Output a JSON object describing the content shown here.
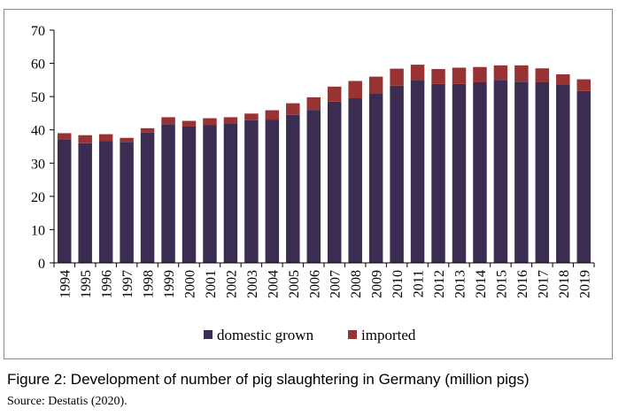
{
  "caption": "Figure 2: Development of number of pig slaughtering in Germany (million pigs)",
  "source": "Source: Destatis (2020).",
  "chart_data": {
    "type": "bar",
    "stacked": true,
    "categories": [
      "1994",
      "1995",
      "1996",
      "1997",
      "1998",
      "1999",
      "2000",
      "2001",
      "2002",
      "2003",
      "2004",
      "2005",
      "2006",
      "2007",
      "2008",
      "2009",
      "2010",
      "2011",
      "2012",
      "2013",
      "2014",
      "2015",
      "2016",
      "2017",
      "2018",
      "2019"
    ],
    "series": [
      {
        "name": "domestic grown",
        "color": "#3b2d52",
        "values": [
          37.1,
          36.0,
          36.7,
          36.4,
          39.2,
          41.7,
          41.0,
          41.5,
          42.0,
          42.9,
          43.1,
          44.5,
          46.0,
          48.5,
          49.5,
          51.0,
          53.3,
          55.0,
          53.8,
          53.8,
          54.3,
          55.0,
          54.5,
          54.3,
          53.5,
          51.7
        ]
      },
      {
        "name": "imported",
        "color": "#993333",
        "values": [
          1.9,
          2.4,
          2.0,
          1.2,
          1.3,
          2.1,
          1.7,
          2.0,
          1.8,
          2.0,
          2.8,
          3.5,
          3.8,
          4.5,
          5.2,
          5.0,
          5.1,
          4.6,
          4.5,
          4.9,
          4.6,
          4.4,
          4.9,
          4.2,
          3.2,
          3.5
        ]
      }
    ],
    "yticks": [
      0,
      10,
      20,
      30,
      40,
      50,
      60,
      70
    ],
    "ylim": [
      0,
      70
    ],
    "grid": false,
    "legend_position": "bottom"
  }
}
